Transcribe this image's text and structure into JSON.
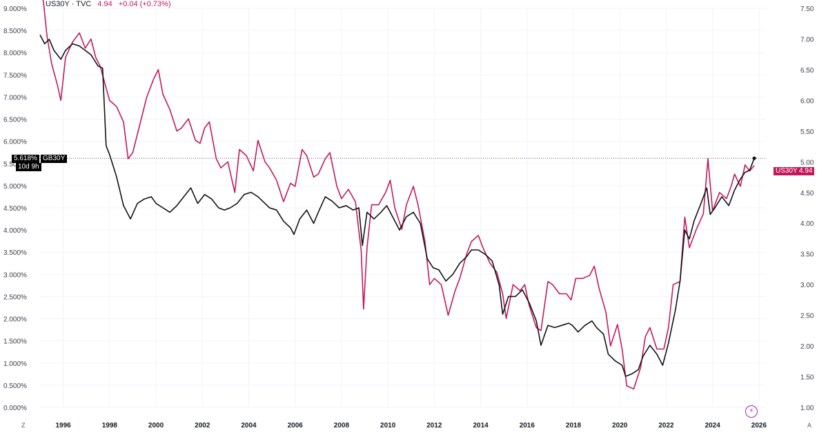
{
  "header": {
    "symbol": "US30Y · TVC",
    "value": "4.94",
    "change": "+0.04 (+0.73%)"
  },
  "overlay_tag": {
    "value": "5.618%",
    "symbol": "GB30Y",
    "countdown": "10d 9h"
  },
  "main_tag": {
    "symbol": "US30Y",
    "value": "4.94"
  },
  "axis_corners": {
    "left": "Z",
    "right": "A"
  },
  "icons": {
    "bolt": "lightning-icon"
  },
  "colors": {
    "us30y": "#c2185b",
    "gb30y": "#111111"
  },
  "chart_data": {
    "type": "line",
    "left_axis": {
      "series": "GB30Y",
      "ylim": [
        0,
        9
      ],
      "ticks": [
        "0.000%",
        "0.500%",
        "1.000%",
        "1.500%",
        "2.000%",
        "2.500%",
        "3.000%",
        "3.500%",
        "4.000%",
        "4.500%",
        "5.000%",
        "5.500%",
        "6.000%",
        "6.500%",
        "7.000%",
        "7.500%",
        "8.000%",
        "8.500%",
        "9.000%"
      ]
    },
    "right_axis": {
      "series": "US30Y",
      "ylim": [
        1.0,
        7.5
      ],
      "ticks": [
        "1.00",
        "1.50",
        "2.00",
        "2.50",
        "3.00",
        "3.50",
        "4.00",
        "4.50",
        "5.00",
        "5.50",
        "6.00",
        "6.50",
        "7.00",
        "7.50"
      ]
    },
    "xlim": [
      1995.0,
      2026.3
    ],
    "x_ticks": [
      1996,
      1998,
      2000,
      2002,
      2004,
      2006,
      2008,
      2010,
      2012,
      2014,
      2016,
      2018,
      2020,
      2022,
      2024,
      2026
    ],
    "reference_line": {
      "series": "GB30Y",
      "value": 5.618
    },
    "series": [
      {
        "name": "US30Y",
        "axis": "right",
        "color": "#c2185b",
        "points": [
          [
            1995.0,
            7.9
          ],
          [
            1995.15,
            7.6
          ],
          [
            1995.3,
            7.05
          ],
          [
            1995.5,
            6.6
          ],
          [
            1995.75,
            6.25
          ],
          [
            1995.9,
            6.0
          ],
          [
            1996.1,
            6.7
          ],
          [
            1996.4,
            6.95
          ],
          [
            1996.7,
            7.1
          ],
          [
            1996.95,
            6.85
          ],
          [
            1997.2,
            7.0
          ],
          [
            1997.4,
            6.7
          ],
          [
            1997.6,
            6.55
          ],
          [
            1997.85,
            6.2
          ],
          [
            1998.0,
            6.0
          ],
          [
            1998.3,
            5.9
          ],
          [
            1998.6,
            5.65
          ],
          [
            1998.8,
            5.05
          ],
          [
            1999.0,
            5.15
          ],
          [
            1999.3,
            5.6
          ],
          [
            1999.6,
            6.05
          ],
          [
            1999.9,
            6.35
          ],
          [
            2000.1,
            6.5
          ],
          [
            2000.3,
            6.1
          ],
          [
            2000.6,
            5.85
          ],
          [
            2000.9,
            5.5
          ],
          [
            2001.1,
            5.55
          ],
          [
            2001.4,
            5.7
          ],
          [
            2001.7,
            5.35
          ],
          [
            2001.9,
            5.3
          ],
          [
            2002.1,
            5.55
          ],
          [
            2002.3,
            5.65
          ],
          [
            2002.6,
            5.05
          ],
          [
            2002.8,
            4.9
          ],
          [
            2003.1,
            5.0
          ],
          [
            2003.4,
            4.5
          ],
          [
            2003.6,
            5.2
          ],
          [
            2003.9,
            5.1
          ],
          [
            2004.2,
            4.85
          ],
          [
            2004.4,
            5.35
          ],
          [
            2004.7,
            5.0
          ],
          [
            2004.9,
            4.9
          ],
          [
            2005.2,
            4.7
          ],
          [
            2005.5,
            4.35
          ],
          [
            2005.8,
            4.65
          ],
          [
            2006.0,
            4.6
          ],
          [
            2006.3,
            5.2
          ],
          [
            2006.5,
            5.1
          ],
          [
            2006.8,
            4.75
          ],
          [
            2007.0,
            4.8
          ],
          [
            2007.3,
            5.05
          ],
          [
            2007.5,
            5.15
          ],
          [
            2007.8,
            4.6
          ],
          [
            2008.0,
            4.4
          ],
          [
            2008.3,
            4.55
          ],
          [
            2008.6,
            4.35
          ],
          [
            2008.85,
            3.55
          ],
          [
            2008.95,
            2.6
          ],
          [
            2009.1,
            3.6
          ],
          [
            2009.3,
            4.3
          ],
          [
            2009.6,
            4.3
          ],
          [
            2009.9,
            4.5
          ],
          [
            2010.1,
            4.7
          ],
          [
            2010.3,
            4.25
          ],
          [
            2010.6,
            3.9
          ],
          [
            2010.8,
            4.3
          ],
          [
            2011.1,
            4.6
          ],
          [
            2011.3,
            4.3
          ],
          [
            2011.6,
            3.7
          ],
          [
            2011.8,
            3.0
          ],
          [
            2012.0,
            3.1
          ],
          [
            2012.3,
            3.0
          ],
          [
            2012.6,
            2.5
          ],
          [
            2012.9,
            2.9
          ],
          [
            2013.1,
            3.1
          ],
          [
            2013.4,
            3.5
          ],
          [
            2013.6,
            3.7
          ],
          [
            2013.9,
            3.8
          ],
          [
            2014.1,
            3.6
          ],
          [
            2014.4,
            3.35
          ],
          [
            2014.7,
            3.2
          ],
          [
            2014.95,
            2.85
          ],
          [
            2015.1,
            2.45
          ],
          [
            2015.4,
            3.0
          ],
          [
            2015.7,
            2.9
          ],
          [
            2015.9,
            3.0
          ],
          [
            2016.1,
            2.65
          ],
          [
            2016.4,
            2.3
          ],
          [
            2016.6,
            2.25
          ],
          [
            2016.9,
            3.05
          ],
          [
            2017.1,
            3.0
          ],
          [
            2017.4,
            2.85
          ],
          [
            2017.7,
            2.85
          ],
          [
            2017.9,
            2.75
          ],
          [
            2018.1,
            3.1
          ],
          [
            2018.4,
            3.1
          ],
          [
            2018.7,
            3.15
          ],
          [
            2018.9,
            3.3
          ],
          [
            2019.1,
            2.95
          ],
          [
            2019.4,
            2.55
          ],
          [
            2019.6,
            2.0
          ],
          [
            2019.9,
            2.35
          ],
          [
            2020.1,
            1.95
          ],
          [
            2020.3,
            1.35
          ],
          [
            2020.6,
            1.3
          ],
          [
            2020.9,
            1.65
          ],
          [
            2021.1,
            2.15
          ],
          [
            2021.3,
            2.3
          ],
          [
            2021.6,
            1.95
          ],
          [
            2021.9,
            1.95
          ],
          [
            2022.1,
            2.3
          ],
          [
            2022.3,
            3.0
          ],
          [
            2022.6,
            3.05
          ],
          [
            2022.8,
            4.1
          ],
          [
            2023.0,
            3.6
          ],
          [
            2023.3,
            3.9
          ],
          [
            2023.6,
            4.15
          ],
          [
            2023.8,
            5.05
          ],
          [
            2024.0,
            4.2
          ],
          [
            2024.3,
            4.5
          ],
          [
            2024.6,
            4.4
          ],
          [
            2024.8,
            4.6
          ],
          [
            2024.95,
            4.8
          ],
          [
            2025.2,
            4.6
          ],
          [
            2025.4,
            4.95
          ],
          [
            2025.6,
            4.85
          ],
          [
            2025.8,
            4.94
          ]
        ]
      },
      {
        "name": "GB30Y",
        "axis": "left",
        "color": "#111111",
        "points": [
          [
            1995.0,
            8.4
          ],
          [
            1995.2,
            8.2
          ],
          [
            1995.4,
            8.3
          ],
          [
            1995.6,
            8.05
          ],
          [
            1995.9,
            7.85
          ],
          [
            1996.1,
            8.05
          ],
          [
            1996.4,
            8.2
          ],
          [
            1996.7,
            8.15
          ],
          [
            1996.95,
            8.05
          ],
          [
            1997.2,
            7.95
          ],
          [
            1997.5,
            7.7
          ],
          [
            1997.7,
            7.65
          ],
          [
            1997.85,
            5.9
          ],
          [
            1998.0,
            5.7
          ],
          [
            1998.3,
            5.2
          ],
          [
            1998.6,
            4.55
          ],
          [
            1998.9,
            4.25
          ],
          [
            1999.2,
            4.6
          ],
          [
            1999.5,
            4.7
          ],
          [
            1999.8,
            4.75
          ],
          [
            2000.0,
            4.6
          ],
          [
            2000.3,
            4.5
          ],
          [
            2000.6,
            4.4
          ],
          [
            2000.9,
            4.55
          ],
          [
            2001.2,
            4.75
          ],
          [
            2001.5,
            4.95
          ],
          [
            2001.8,
            4.6
          ],
          [
            2002.1,
            4.8
          ],
          [
            2002.4,
            4.7
          ],
          [
            2002.7,
            4.5
          ],
          [
            2002.95,
            4.45
          ],
          [
            2003.2,
            4.5
          ],
          [
            2003.5,
            4.6
          ],
          [
            2003.8,
            4.8
          ],
          [
            2004.1,
            4.85
          ],
          [
            2004.4,
            4.75
          ],
          [
            2004.7,
            4.6
          ],
          [
            2004.9,
            4.5
          ],
          [
            2005.2,
            4.45
          ],
          [
            2005.5,
            4.2
          ],
          [
            2005.8,
            4.05
          ],
          [
            2005.95,
            3.9
          ],
          [
            2006.2,
            4.25
          ],
          [
            2006.5,
            4.45
          ],
          [
            2006.8,
            4.15
          ],
          [
            2007.0,
            4.4
          ],
          [
            2007.3,
            4.75
          ],
          [
            2007.6,
            4.65
          ],
          [
            2007.9,
            4.5
          ],
          [
            2008.2,
            4.55
          ],
          [
            2008.5,
            4.45
          ],
          [
            2008.75,
            4.5
          ],
          [
            2008.9,
            3.65
          ],
          [
            2009.1,
            4.4
          ],
          [
            2009.4,
            4.25
          ],
          [
            2009.7,
            4.4
          ],
          [
            2009.95,
            4.55
          ],
          [
            2010.2,
            4.3
          ],
          [
            2010.5,
            4.0
          ],
          [
            2010.8,
            4.3
          ],
          [
            2011.1,
            4.4
          ],
          [
            2011.4,
            4.15
          ],
          [
            2011.7,
            3.35
          ],
          [
            2011.95,
            3.15
          ],
          [
            2012.2,
            3.1
          ],
          [
            2012.5,
            2.85
          ],
          [
            2012.8,
            3.0
          ],
          [
            2013.1,
            3.25
          ],
          [
            2013.4,
            3.4
          ],
          [
            2013.6,
            3.55
          ],
          [
            2013.9,
            3.55
          ],
          [
            2014.2,
            3.45
          ],
          [
            2014.5,
            3.3
          ],
          [
            2014.8,
            2.75
          ],
          [
            2014.95,
            2.1
          ],
          [
            2015.2,
            2.5
          ],
          [
            2015.5,
            2.5
          ],
          [
            2015.8,
            2.65
          ],
          [
            2016.1,
            2.35
          ],
          [
            2016.4,
            1.95
          ],
          [
            2016.6,
            1.4
          ],
          [
            2016.9,
            1.85
          ],
          [
            2017.2,
            1.8
          ],
          [
            2017.5,
            1.85
          ],
          [
            2017.8,
            1.9
          ],
          [
            2017.95,
            1.85
          ],
          [
            2018.2,
            1.7
          ],
          [
            2018.5,
            1.85
          ],
          [
            2018.8,
            1.95
          ],
          [
            2019.0,
            1.8
          ],
          [
            2019.3,
            1.65
          ],
          [
            2019.5,
            1.2
          ],
          [
            2019.8,
            1.05
          ],
          [
            2020.1,
            0.95
          ],
          [
            2020.25,
            0.7
          ],
          [
            2020.5,
            0.75
          ],
          [
            2020.8,
            0.85
          ],
          [
            2021.0,
            1.15
          ],
          [
            2021.3,
            1.4
          ],
          [
            2021.6,
            1.2
          ],
          [
            2021.85,
            0.95
          ],
          [
            2022.1,
            1.45
          ],
          [
            2022.4,
            2.2
          ],
          [
            2022.6,
            2.85
          ],
          [
            2022.8,
            4.0
          ],
          [
            2023.0,
            3.8
          ],
          [
            2023.2,
            4.2
          ],
          [
            2023.5,
            4.6
          ],
          [
            2023.75,
            4.95
          ],
          [
            2023.9,
            4.35
          ],
          [
            2024.1,
            4.5
          ],
          [
            2024.4,
            4.75
          ],
          [
            2024.7,
            4.55
          ],
          [
            2024.95,
            4.9
          ],
          [
            2025.2,
            5.15
          ],
          [
            2025.4,
            5.3
          ],
          [
            2025.6,
            5.35
          ],
          [
            2025.8,
            5.618
          ]
        ]
      }
    ]
  }
}
